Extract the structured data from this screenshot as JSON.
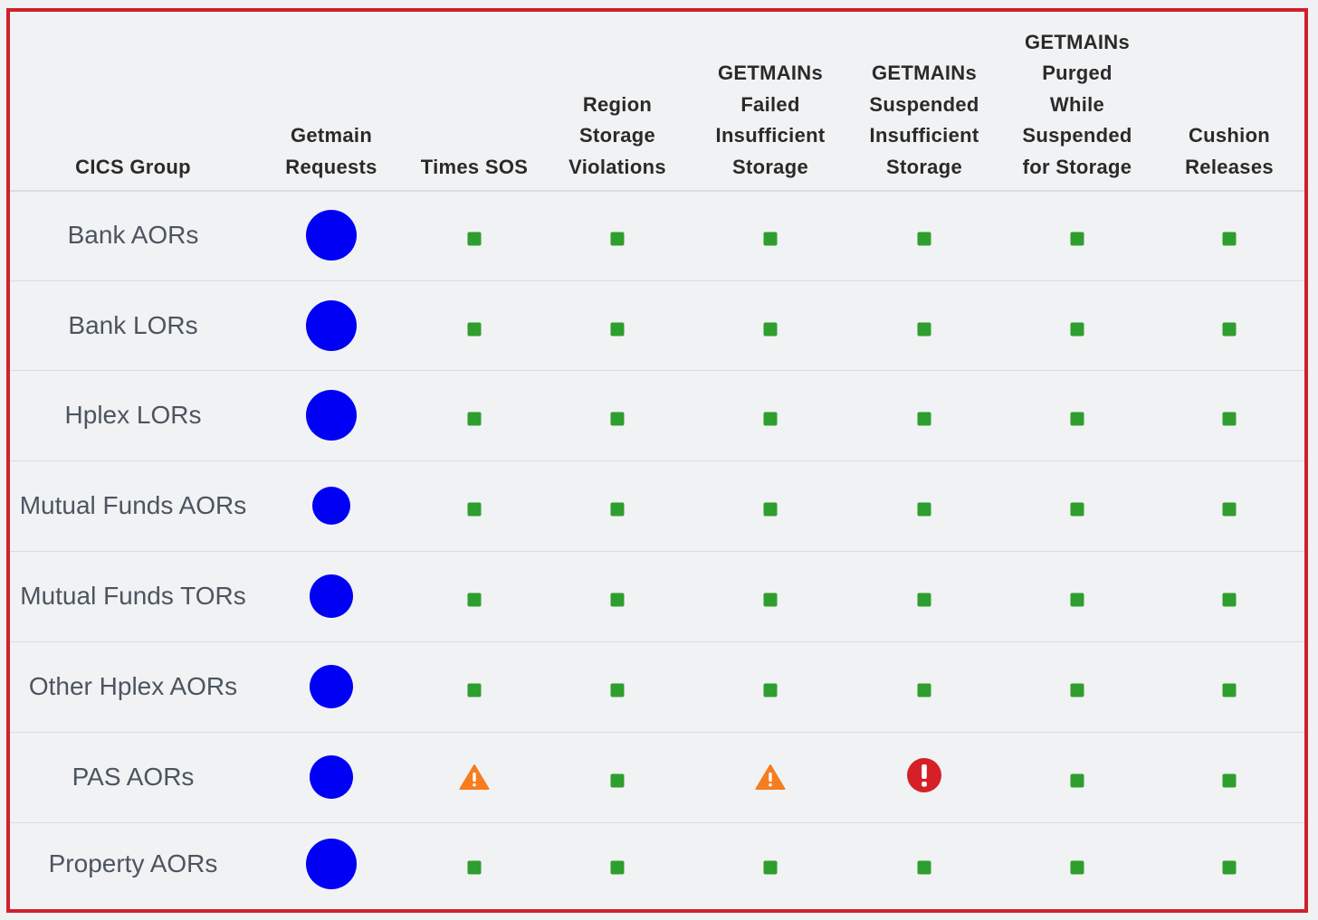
{
  "table": {
    "columns": [
      "CICS Group",
      "Getmain\nRequests",
      "Times SOS",
      "Region\nStorage\nViolations",
      "GETMAINs\nFailed\nInsufficient\nStorage",
      "GETMAINs\nSuspended\nInsufficient\nStorage",
      "GETMAINs\nPurged\nWhile\nSuspended\nfor Storage",
      "Cushion\nReleases"
    ],
    "rows": [
      {
        "group": "Bank AORs",
        "getmain_size": "large",
        "statuses": [
          "ok",
          "ok",
          "ok",
          "ok",
          "ok",
          "ok"
        ]
      },
      {
        "group": "Bank LORs",
        "getmain_size": "large",
        "statuses": [
          "ok",
          "ok",
          "ok",
          "ok",
          "ok",
          "ok"
        ]
      },
      {
        "group": "Hplex LORs",
        "getmain_size": "large",
        "statuses": [
          "ok",
          "ok",
          "ok",
          "ok",
          "ok",
          "ok"
        ]
      },
      {
        "group": "Mutual Funds AORs",
        "getmain_size": "small",
        "statuses": [
          "ok",
          "ok",
          "ok",
          "ok",
          "ok",
          "ok"
        ]
      },
      {
        "group": "Mutual Funds TORs",
        "getmain_size": "medium",
        "statuses": [
          "ok",
          "ok",
          "ok",
          "ok",
          "ok",
          "ok"
        ]
      },
      {
        "group": "Other Hplex AORs",
        "getmain_size": "medium",
        "statuses": [
          "ok",
          "ok",
          "ok",
          "ok",
          "ok",
          "ok"
        ]
      },
      {
        "group": "PAS AORs",
        "getmain_size": "medium",
        "statuses": [
          "warning",
          "ok",
          "warning",
          "error",
          "ok",
          "ok"
        ]
      },
      {
        "group": "Property AORs",
        "getmain_size": "large",
        "statuses": [
          "ok",
          "ok",
          "ok",
          "ok",
          "ok",
          "ok"
        ]
      }
    ]
  },
  "icons": {
    "ok": "green-square-icon",
    "warning": "orange-warning-triangle-icon",
    "error": "red-exclamation-circle-icon",
    "getmain": "blue-circle-icon"
  },
  "colors": {
    "border": "#d0202a",
    "ok": "#2e9e2e",
    "warning": "#f57c1f",
    "error": "#d52027",
    "getmain": "#0000f5"
  }
}
